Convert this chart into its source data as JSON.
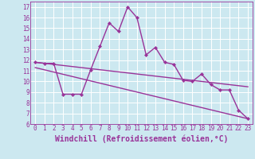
{
  "bg_color": "#cce8f0",
  "grid_color": "#ffffff",
  "line_color": "#993399",
  "marker_color": "#993399",
  "xlim": [
    -0.5,
    23.5
  ],
  "ylim": [
    6,
    17.5
  ],
  "xticks": [
    0,
    1,
    2,
    3,
    4,
    5,
    6,
    7,
    8,
    9,
    10,
    11,
    12,
    13,
    14,
    15,
    16,
    17,
    18,
    19,
    20,
    21,
    22,
    23
  ],
  "yticks": [
    6,
    7,
    8,
    9,
    10,
    11,
    12,
    13,
    14,
    15,
    16,
    17
  ],
  "xlabel": "Windchill (Refroidissement éolien,°C)",
  "main_line_x": [
    0,
    1,
    2,
    3,
    4,
    5,
    6,
    7,
    8,
    9,
    10,
    11,
    12,
    13,
    14,
    15,
    16,
    17,
    18,
    19,
    20,
    21,
    22,
    23
  ],
  "main_line_y": [
    11.8,
    11.7,
    11.7,
    8.8,
    8.8,
    8.8,
    11.1,
    13.3,
    15.5,
    14.7,
    17.0,
    16.0,
    12.5,
    13.2,
    11.8,
    11.6,
    10.1,
    10.0,
    10.7,
    9.7,
    9.2,
    9.2,
    7.3,
    6.5
  ],
  "upper_line_x": [
    0,
    23
  ],
  "upper_line_y": [
    11.8,
    9.5
  ],
  "lower_line_x": [
    0,
    23
  ],
  "lower_line_y": [
    11.3,
    6.5
  ],
  "tick_fontsize": 5.5,
  "label_fontsize": 7.0,
  "linewidth": 1.0,
  "markersize": 2.2
}
